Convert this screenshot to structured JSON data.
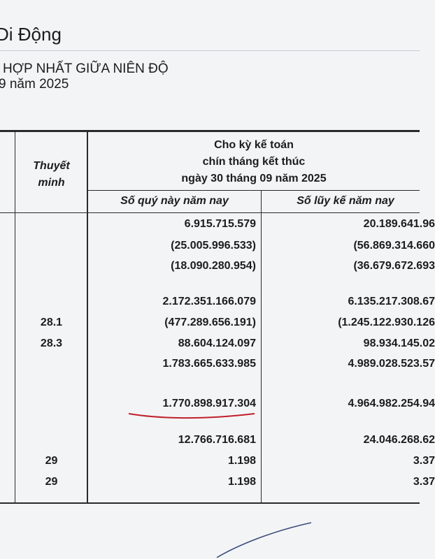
{
  "header": {
    "company_fragment": "Di Động",
    "report_title_fragment": "HỢP NHẤT GIỮA NIÊN ĐỘ",
    "period_fragment": "9 năm 2025"
  },
  "table": {
    "col_note": "Thuyết minh",
    "col_note_lines": [
      "Thuyết",
      "minh"
    ],
    "period_header_lines": [
      "Cho kỳ kế toán",
      "chín tháng kết thúc",
      "ngày 30 tháng 09 năm 2025"
    ],
    "col_quarter": "Số quý này năm nay",
    "col_ytd": "Số lũy kế năm nay",
    "rows": [
      {
        "note": "",
        "quarter": "6.915.715.579",
        "ytd": "20.189.641.96"
      },
      {
        "note": "",
        "quarter": "(25.005.996.533)",
        "ytd": "(56.869.314.660"
      },
      {
        "note": "",
        "quarter": "(18.090.280.954)",
        "ytd": "(36.679.672.693"
      },
      {
        "note": "",
        "quarter": "2.172.351.166.079",
        "ytd": "6.135.217.308.67"
      },
      {
        "note": "28.1",
        "quarter": "(477.289.656.191)",
        "ytd": "(1.245.122.930.126"
      },
      {
        "note": "28.3",
        "quarter": "88.604.124.097",
        "ytd": "98.934.145.02"
      },
      {
        "note": "",
        "quarter": "1.783.665.633.985",
        "ytd": "4.989.028.523.57"
      },
      {
        "note": "",
        "quarter": "1.770.898.917.304",
        "ytd": "4.964.982.254.94"
      },
      {
        "note": "",
        "quarter": "12.766.716.681",
        "ytd": "24.046.268.62"
      },
      {
        "note": "29",
        "quarter": "1.198",
        "ytd": "3.37"
      },
      {
        "note": "29",
        "quarter": "1.198",
        "ytd": "3.37"
      }
    ]
  },
  "annotation": {
    "underline_color": "#c0202a",
    "highlighted_value": "1.770.898.917.304"
  }
}
